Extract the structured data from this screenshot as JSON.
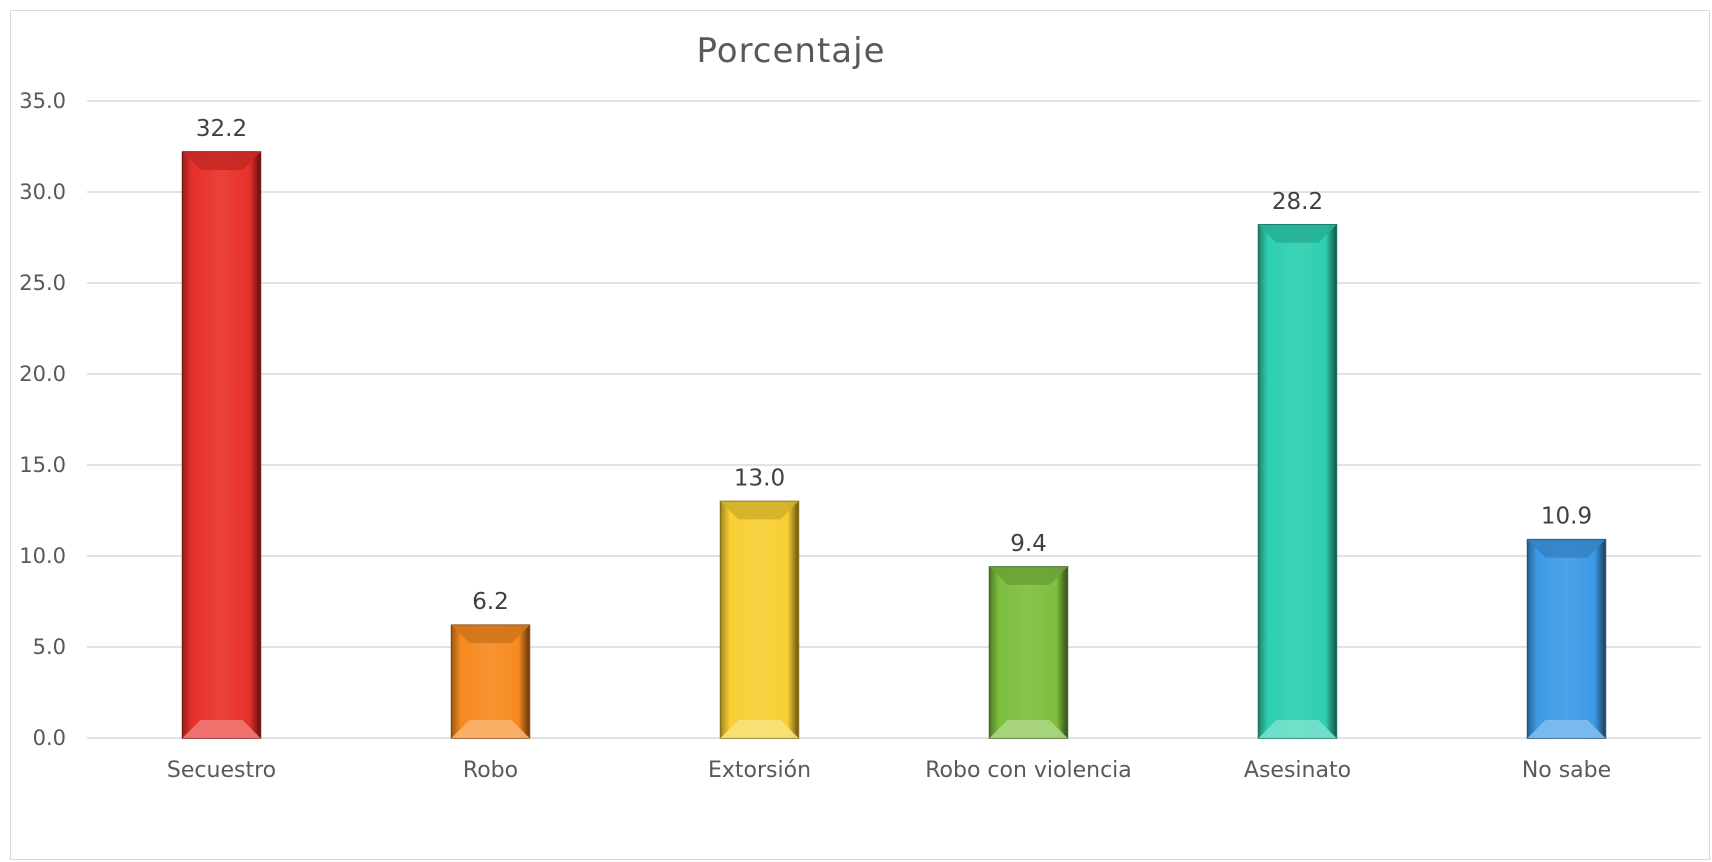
{
  "chart_data": {
    "type": "bar",
    "title": "Porcentaje",
    "categories": [
      "Secuestro",
      "Robo",
      "Extorsión",
      "Robo con violencia",
      "Asesinato",
      "No sabe"
    ],
    "values": [
      32.2,
      6.2,
      13.0,
      9.4,
      28.2,
      10.9
    ],
    "value_labels": [
      "32.2",
      "6.2",
      "13.0",
      "9.4",
      "28.2",
      "10.9"
    ],
    "ylim": [
      0,
      35
    ],
    "yticks": [
      "0.0",
      "5.0",
      "10.0",
      "15.0",
      "20.0",
      "25.0",
      "30.0",
      "35.0"
    ],
    "grid": true,
    "legend": "none",
    "colors": [
      "#e8302a",
      "#f68a20",
      "#f7cf33",
      "#7dbf3f",
      "#2ecfb0",
      "#3d9ae6"
    ],
    "xlabel": "",
    "ylabel": ""
  }
}
